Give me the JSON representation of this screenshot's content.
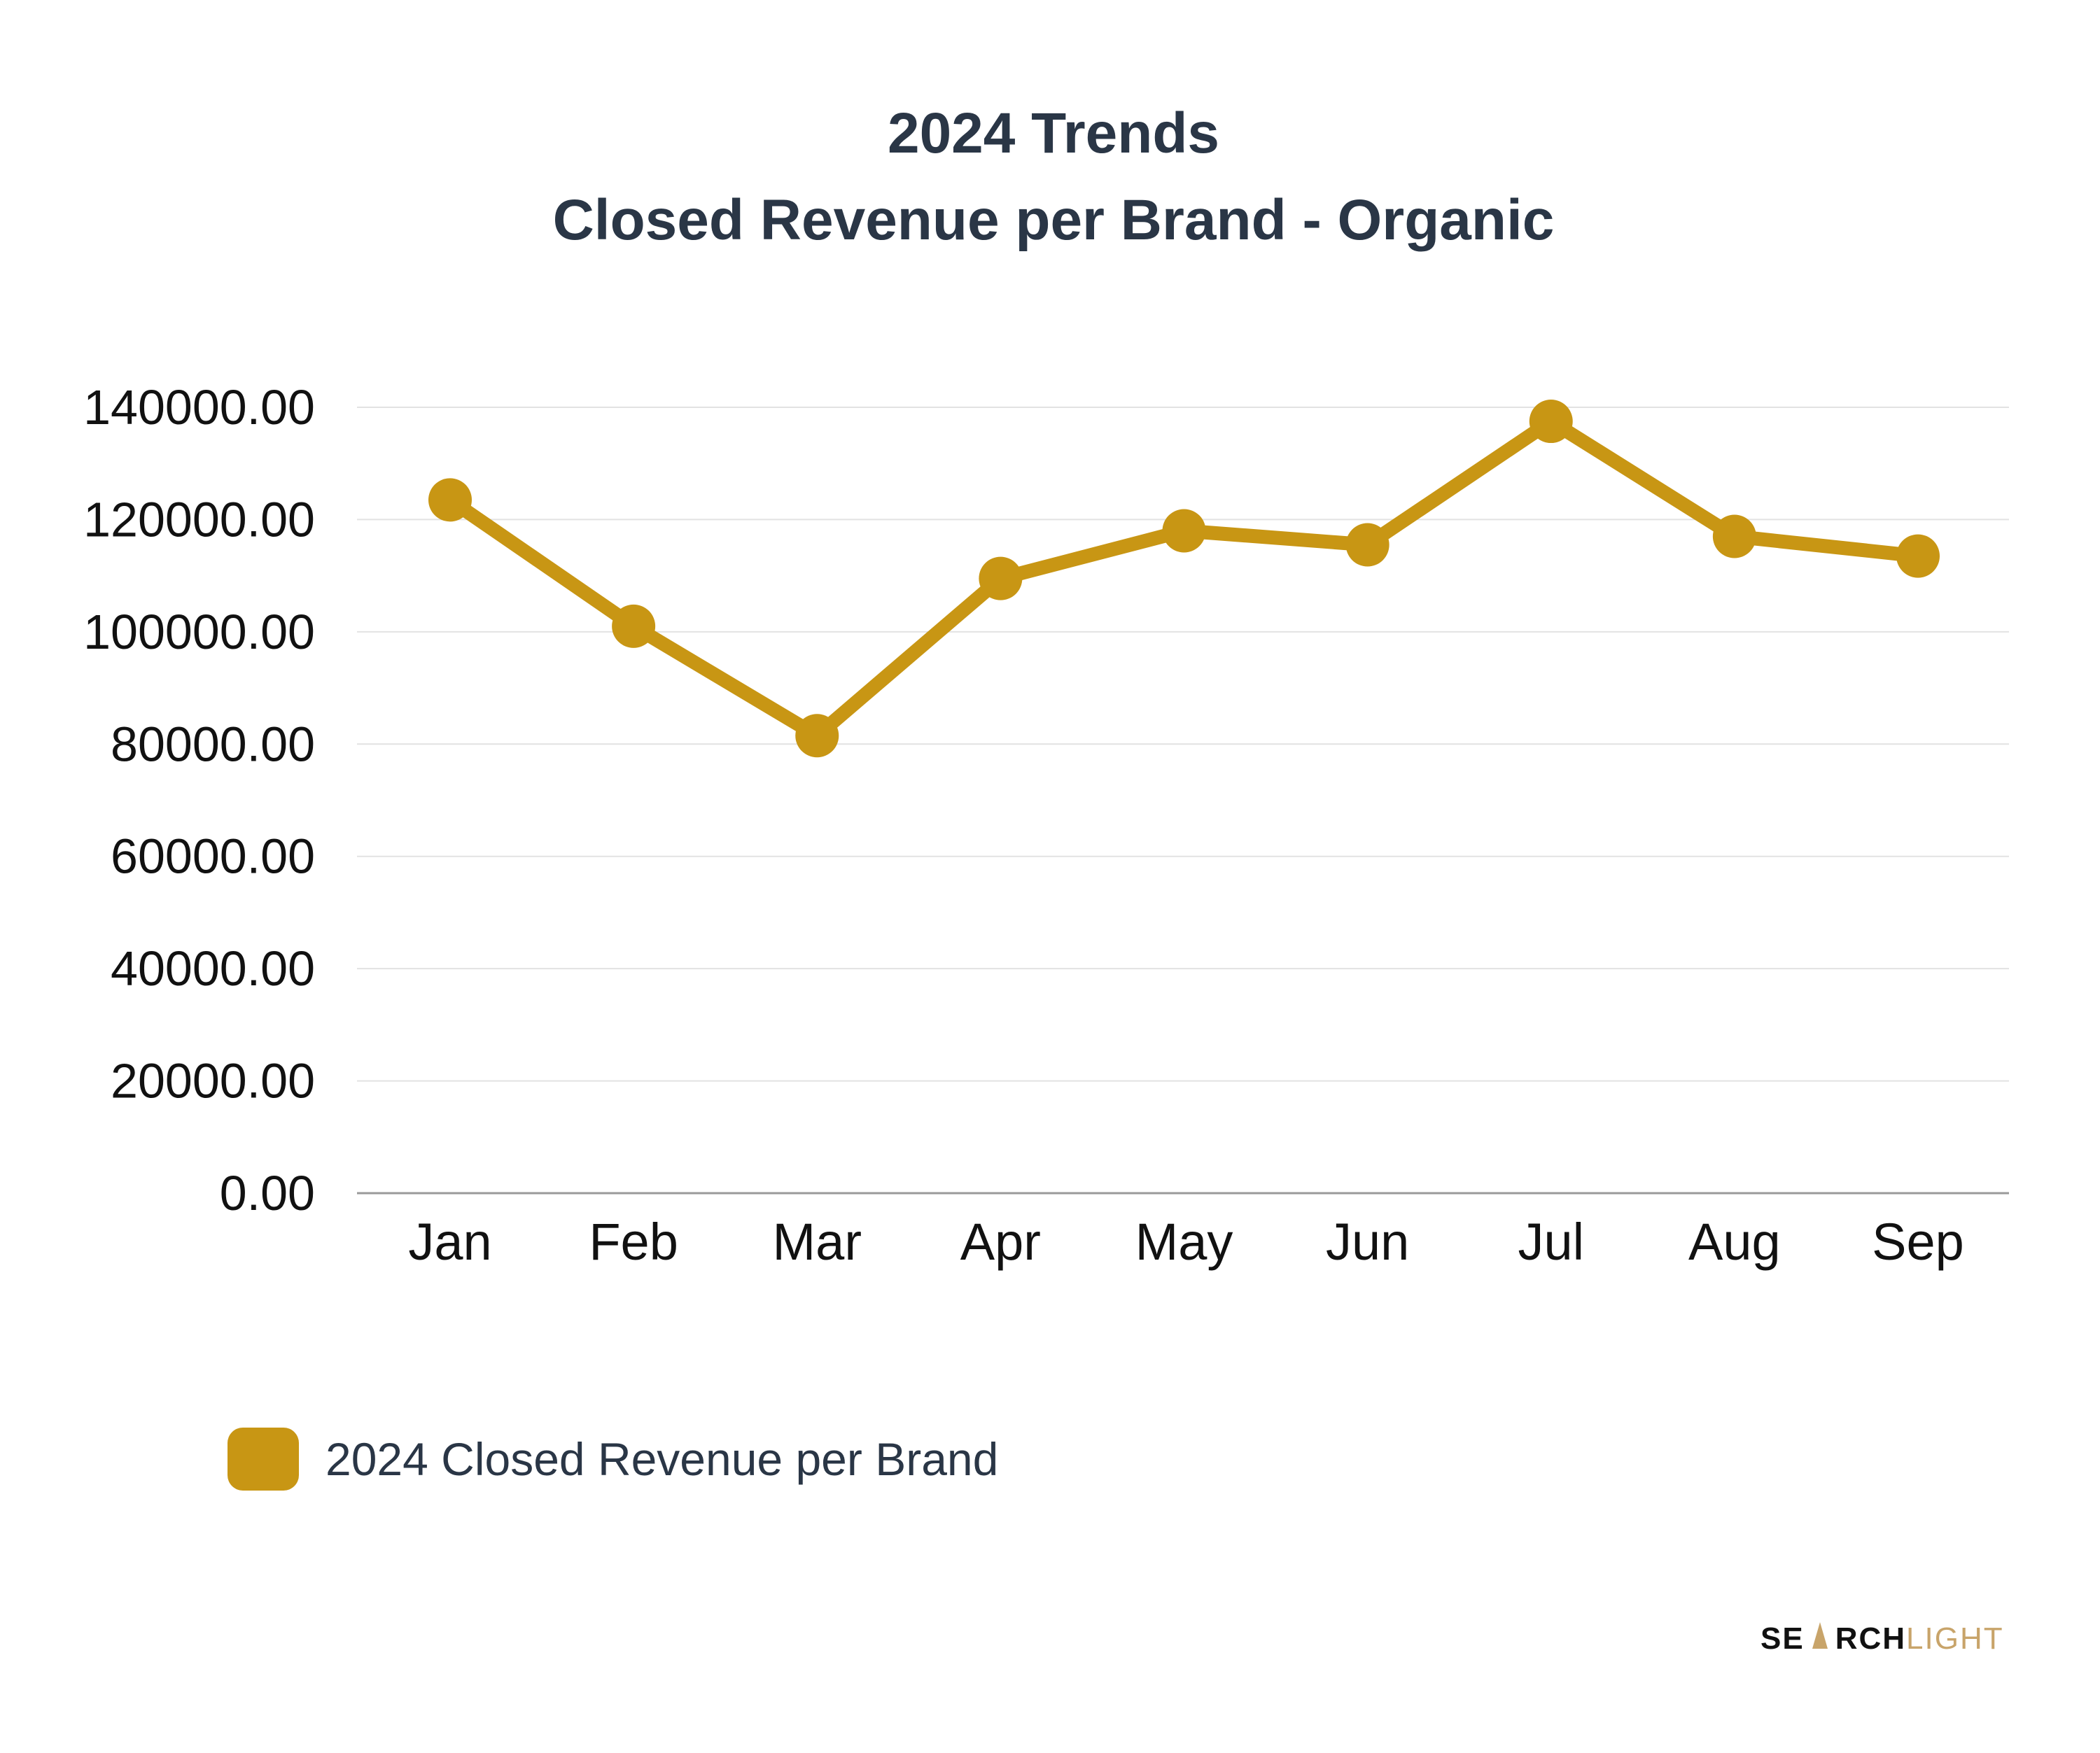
{
  "colors": {
    "series": "#c89614",
    "title": "#2a3646",
    "grid": "#e2e2e2",
    "axis": "#9a9a9a",
    "logo_accent": "#c8a46a"
  },
  "logo": {
    "part1": "SE",
    "part2": "RCH",
    "part3": "LIGHT"
  },
  "chart_data": {
    "type": "line",
    "title": [
      "2024 Trends",
      "Closed Revenue per Brand - Organic"
    ],
    "xlabel": "",
    "ylabel": "",
    "categories": [
      "Jan",
      "Feb",
      "Mar",
      "Apr",
      "May",
      "Jun",
      "Jul",
      "Aug",
      "Sep"
    ],
    "ylim": [
      0,
      140000
    ],
    "yticks": [
      "0.00",
      "20000.00",
      "40000.00",
      "60000.00",
      "80000.00",
      "100000.00",
      "120000.00",
      "140000.00"
    ],
    "grid": true,
    "legend": "bottom-left",
    "series": [
      {
        "name": "2024 Closed Revenue per Brand",
        "values": [
          123500,
          101000,
          81500,
          109500,
          118000,
          115500,
          137500,
          117000,
          113500
        ]
      }
    ]
  }
}
